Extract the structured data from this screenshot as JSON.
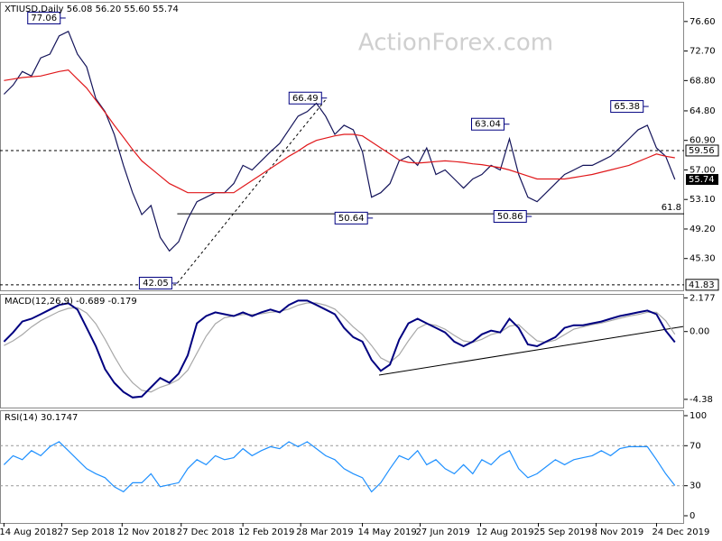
{
  "chart_data": [
    {
      "type": "line",
      "title": "XTIUSD,Daily  56.08 56.20 55.60 55.74",
      "watermark": "ActionForex.com",
      "x": [
        "2018-08-14",
        "2018-08-21",
        "2018-08-28",
        "2018-09-04",
        "2018-09-11",
        "2018-09-18",
        "2018-09-25",
        "2018-10-02",
        "2018-10-09",
        "2018-10-16",
        "2018-10-23",
        "2018-10-30",
        "2018-11-06",
        "2018-11-13",
        "2018-11-20",
        "2018-11-27",
        "2018-12-04",
        "2018-12-11",
        "2018-12-18",
        "2018-12-25",
        "2019-01-01",
        "2019-01-08",
        "2019-01-15",
        "2019-01-22",
        "2019-01-29",
        "2019-02-05",
        "2019-02-12",
        "2019-02-19",
        "2019-02-26",
        "2019-03-05",
        "2019-03-12",
        "2019-03-19",
        "2019-03-26",
        "2019-04-02",
        "2019-04-09",
        "2019-04-16",
        "2019-04-23",
        "2019-04-30",
        "2019-05-07",
        "2019-05-14",
        "2019-05-21",
        "2019-05-28",
        "2019-06-04",
        "2019-06-11",
        "2019-06-18",
        "2019-06-25",
        "2019-07-02",
        "2019-07-09",
        "2019-07-16",
        "2019-07-23",
        "2019-07-30",
        "2019-08-06",
        "2019-08-13",
        "2019-08-20",
        "2019-08-27",
        "2019-09-03",
        "2019-09-10",
        "2019-09-17",
        "2019-09-24",
        "2019-10-01",
        "2019-10-08",
        "2019-10-15",
        "2019-10-22",
        "2019-10-29",
        "2019-11-05",
        "2019-11-12",
        "2019-11-19",
        "2019-11-26",
        "2019-12-03",
        "2019-12-10",
        "2019-12-17",
        "2019-12-24",
        "2019-12-31",
        "2020-01-07"
      ],
      "xlim": [
        "2018-08-11",
        "2020-01-14"
      ],
      "ylim": [
        41.1,
        79.2
      ],
      "yticks": [
        {
          "value": 76.6,
          "label": "76.60"
        },
        {
          "value": 72.7,
          "label": "72.70"
        },
        {
          "value": 68.8,
          "label": "68.80"
        },
        {
          "value": 64.8,
          "label": "64.80"
        },
        {
          "value": 60.9,
          "label": "60.90"
        },
        {
          "value": 57,
          "label": "57.00"
        },
        {
          "value": 53.1,
          "label": "53.10"
        },
        {
          "value": 49.2,
          "label": "49.20"
        },
        {
          "value": 45.3,
          "label": "45.30"
        }
      ],
      "grid": false,
      "series": [
        {
          "color": "#14145a",
          "values": [
            67.0,
            68.2,
            70.0,
            69.4,
            71.8,
            72.3,
            74.7,
            75.3,
            72.3,
            70.6,
            66.4,
            64.7,
            61.7,
            57.6,
            54.0,
            51.1,
            52.3,
            48.1,
            46.3,
            47.5,
            50.5,
            52.8,
            53.4,
            54.0,
            54.0,
            55.2,
            57.6,
            57.0,
            58.2,
            59.4,
            60.5,
            62.3,
            64.1,
            64.7,
            65.8,
            64.1,
            61.7,
            62.9,
            62.3,
            59.4,
            53.4,
            54.0,
            55.2,
            58.2,
            58.8,
            57.6,
            59.9,
            56.4,
            57.0,
            55.8,
            54.6,
            55.8,
            56.4,
            57.6,
            57.0,
            61.1,
            56.4,
            53.4,
            52.8,
            54.0,
            55.2,
            56.4,
            57.0,
            57.6,
            57.6,
            58.2,
            58.8,
            59.9,
            61.1,
            62.3,
            62.9,
            59.9,
            58.8,
            55.74
          ]
        },
        {
          "color": "#e0181b",
          "values": [
            68.8,
            69.0,
            69.2,
            69.3,
            69.4,
            69.7,
            70.0,
            70.2,
            69.0,
            67.8,
            66.2,
            64.6,
            62.9,
            61.3,
            59.7,
            58.2,
            57.2,
            56.2,
            55.2,
            54.6,
            54.0,
            54.0,
            54.0,
            54.0,
            54.0,
            54.0,
            54.8,
            55.6,
            56.4,
            57.2,
            58.0,
            58.8,
            59.5,
            60.3,
            60.9,
            61.2,
            61.5,
            61.7,
            61.7,
            61.5,
            60.7,
            59.9,
            59.1,
            58.3,
            58.0,
            57.9,
            58.0,
            58.1,
            58.2,
            58.1,
            58.0,
            57.8,
            57.7,
            57.5,
            57.3,
            57.0,
            56.6,
            56.2,
            55.8,
            55.8,
            55.8,
            55.8,
            56.0,
            56.2,
            56.4,
            56.7,
            57.0,
            57.3,
            57.6,
            58.1,
            58.6,
            59.1,
            58.8,
            58.6
          ]
        }
      ],
      "dashed_levels": [
        59.56,
        41.83
      ],
      "last": 55.74,
      "level_line": {
        "value": 51.2,
        "label": "61.8"
      },
      "annotations": [
        {
          "x": "2018-09-30",
          "value": 77.06
        },
        {
          "x": "2018-12-24",
          "value": 42.05
        },
        {
          "x": "2019-04-17",
          "value": 66.49
        },
        {
          "x": "2019-05-22",
          "value": 50.64
        },
        {
          "x": "2019-09-03",
          "value": 63.04
        },
        {
          "x": "2019-09-20",
          "value": 50.86
        },
        {
          "x": "2019-12-18",
          "value": 65.38
        }
      ]
    },
    {
      "type": "line",
      "title": "MACD(12,26,9) -0.689 -0.179",
      "x": [
        "2018-08-14",
        "2018-08-21",
        "2018-08-28",
        "2018-09-04",
        "2018-09-11",
        "2018-09-18",
        "2018-09-25",
        "2018-10-02",
        "2018-10-09",
        "2018-10-16",
        "2018-10-23",
        "2018-10-30",
        "2018-11-06",
        "2018-11-13",
        "2018-11-20",
        "2018-11-27",
        "2018-12-04",
        "2018-12-11",
        "2018-12-18",
        "2018-12-25",
        "2019-01-01",
        "2019-01-08",
        "2019-01-15",
        "2019-01-22",
        "2019-01-29",
        "2019-02-05",
        "2019-02-12",
        "2019-02-19",
        "2019-02-26",
        "2019-03-05",
        "2019-03-12",
        "2019-03-19",
        "2019-03-26",
        "2019-04-02",
        "2019-04-09",
        "2019-04-16",
        "2019-04-23",
        "2019-04-30",
        "2019-05-07",
        "2019-05-14",
        "2019-05-21",
        "2019-05-28",
        "2019-06-04",
        "2019-06-11",
        "2019-06-18",
        "2019-06-25",
        "2019-07-02",
        "2019-07-09",
        "2019-07-16",
        "2019-07-23",
        "2019-07-30",
        "2019-08-06",
        "2019-08-13",
        "2019-08-20",
        "2019-08-27",
        "2019-09-03",
        "2019-09-10",
        "2019-09-17",
        "2019-09-24",
        "2019-10-01",
        "2019-10-08",
        "2019-10-15",
        "2019-10-22",
        "2019-10-29",
        "2019-11-05",
        "2019-11-12",
        "2019-11-19",
        "2019-11-26",
        "2019-12-03",
        "2019-12-10",
        "2019-12-17",
        "2019-12-24",
        "2019-12-31",
        "2020-01-07"
      ],
      "xlim": [
        "2018-08-11",
        "2020-01-14"
      ],
      "ylim": [
        -4.91,
        2.43
      ],
      "yticks": [
        2.177,
        {
          "value": 0,
          "label": "0.00"
        },
        -4.38
      ],
      "grid": false,
      "series": [
        {
          "color": "#a8a8a8",
          "values": [
            -0.9,
            -0.6,
            -0.2,
            0.3,
            0.7,
            1.0,
            1.3,
            1.5,
            1.55,
            1.2,
            0.5,
            -0.5,
            -1.6,
            -2.6,
            -3.3,
            -3.8,
            -3.9,
            -3.6,
            -3.4,
            -3.1,
            -2.5,
            -1.4,
            -0.3,
            0.5,
            0.9,
            1.0,
            1.1,
            1.1,
            1.15,
            1.25,
            1.3,
            1.45,
            1.7,
            1.85,
            1.85,
            1.7,
            1.45,
            0.9,
            0.3,
            -0.2,
            -0.9,
            -1.7,
            -2.0,
            -1.5,
            -0.6,
            0.2,
            0.5,
            0.4,
            0.15,
            -0.25,
            -0.6,
            -0.7,
            -0.5,
            -0.2,
            -0.05,
            0.35,
            0.45,
            -0.1,
            -0.6,
            -0.7,
            -0.55,
            -0.2,
            0.15,
            0.3,
            0.45,
            0.55,
            0.7,
            0.85,
            1.0,
            1.1,
            1.25,
            1.25,
            0.7,
            -0.179
          ]
        },
        {
          "color": "#000080",
          "values": [
            -0.65,
            -0.06,
            0.65,
            0.83,
            1.12,
            1.42,
            1.72,
            1.83,
            1.42,
            0.24,
            -0.95,
            -2.43,
            -3.31,
            -3.9,
            -4.26,
            -4.2,
            -3.6,
            -3.0,
            -3.31,
            -2.72,
            -1.54,
            0.53,
            1.0,
            1.24,
            1.12,
            1.0,
            1.24,
            1.0,
            1.24,
            1.42,
            1.24,
            1.72,
            2.0,
            2.0,
            1.72,
            1.42,
            1.12,
            0.24,
            -0.36,
            -0.65,
            -1.83,
            -2.54,
            -2.13,
            -0.53,
            0.53,
            0.83,
            0.53,
            0.24,
            -0.06,
            -0.65,
            -0.95,
            -0.65,
            -0.18,
            0.06,
            -0.06,
            0.83,
            0.24,
            -0.83,
            -0.95,
            -0.65,
            -0.36,
            0.24,
            0.41,
            0.41,
            0.53,
            0.65,
            0.83,
            1.0,
            1.12,
            1.24,
            1.36,
            1.12,
            0.06,
            -0.689
          ]
        }
      ]
    },
    {
      "type": "line",
      "title": "RSI(14) 30.1747",
      "x": [
        "2018-08-14",
        "2018-08-21",
        "2018-08-28",
        "2018-09-04",
        "2018-09-11",
        "2018-09-18",
        "2018-09-25",
        "2018-10-02",
        "2018-10-09",
        "2018-10-16",
        "2018-10-23",
        "2018-10-30",
        "2018-11-06",
        "2018-11-13",
        "2018-11-20",
        "2018-11-27",
        "2018-12-04",
        "2018-12-11",
        "2018-12-18",
        "2018-12-25",
        "2019-01-01",
        "2019-01-08",
        "2019-01-15",
        "2019-01-22",
        "2019-01-29",
        "2019-02-05",
        "2019-02-12",
        "2019-02-19",
        "2019-02-26",
        "2019-03-05",
        "2019-03-12",
        "2019-03-19",
        "2019-03-26",
        "2019-04-02",
        "2019-04-09",
        "2019-04-16",
        "2019-04-23",
        "2019-04-30",
        "2019-05-07",
        "2019-05-14",
        "2019-05-21",
        "2019-05-28",
        "2019-06-04",
        "2019-06-11",
        "2019-06-18",
        "2019-06-25",
        "2019-07-02",
        "2019-07-09",
        "2019-07-16",
        "2019-07-23",
        "2019-07-30",
        "2019-08-06",
        "2019-08-13",
        "2019-08-20",
        "2019-08-27",
        "2019-09-03",
        "2019-09-10",
        "2019-09-17",
        "2019-09-24",
        "2019-10-01",
        "2019-10-08",
        "2019-10-15",
        "2019-10-22",
        "2019-10-29",
        "2019-11-05",
        "2019-11-12",
        "2019-11-19",
        "2019-11-26",
        "2019-12-03",
        "2019-12-10",
        "2019-12-17",
        "2019-12-24",
        "2019-12-31",
        "2020-01-07"
      ],
      "xlim": [
        "2018-08-11",
        "2020-01-14"
      ],
      "ylim": [
        -7.2,
        105.4
      ],
      "yticks": [
        100,
        70,
        30,
        0
      ],
      "grid": true,
      "xticks": [
        {
          "value": "2018-08-14",
          "label": "14 Aug 2018"
        },
        {
          "value": "2018-09-27",
          "label": "27 Sep 2018"
        },
        {
          "value": "2018-11-12",
          "label": "12 Nov 2018"
        },
        {
          "value": "2018-12-27",
          "label": "27 Dec 2018"
        },
        {
          "value": "2019-02-12",
          "label": "12 Feb 2019"
        },
        {
          "value": "2019-03-28",
          "label": "28 Mar 2019"
        },
        {
          "value": "2019-05-14",
          "label": "14 May 2019"
        },
        {
          "value": "2019-06-27",
          "label": "27 Jun 2019"
        },
        {
          "value": "2019-08-12",
          "label": "12 Aug 2019"
        },
        {
          "value": "2019-09-25",
          "label": "25 Sep 2019"
        },
        {
          "value": "2019-11-08",
          "label": "8 Nov 2019"
        },
        {
          "value": "2019-12-24",
          "label": "24 Dec 2019"
        }
      ],
      "series": [
        {
          "color": "#1e90ff",
          "values": [
            51,
            60,
            56,
            65,
            60,
            69,
            74,
            65,
            56,
            47,
            42,
            38,
            29,
            24,
            33,
            33,
            42,
            29,
            31,
            33,
            47,
            56,
            51,
            60,
            56,
            58,
            67,
            60,
            65,
            69,
            67,
            74,
            69,
            74,
            67,
            60,
            56,
            47,
            42,
            38,
            24,
            33,
            47,
            60,
            56,
            65,
            51,
            56,
            47,
            42,
            51,
            42,
            56,
            51,
            60,
            65,
            47,
            38,
            42,
            49,
            56,
            51,
            56,
            58,
            60,
            65,
            60,
            67,
            69,
            69,
            69,
            56,
            42,
            30.1747
          ]
        }
      ]
    }
  ]
}
